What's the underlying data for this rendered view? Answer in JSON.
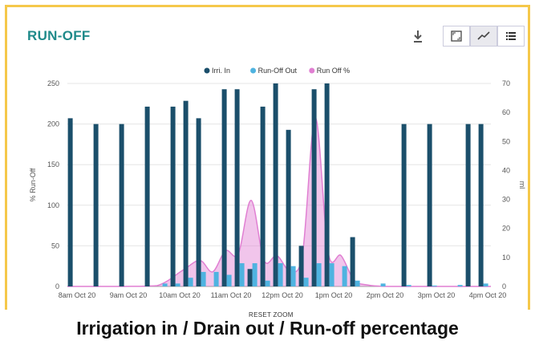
{
  "header": {
    "title": "RUN-OFF"
  },
  "toolbar": {
    "download_icon": "download-icon",
    "fullscreen_icon": "fullscreen-icon",
    "line_icon": "line-chart-icon",
    "list_icon": "list-icon"
  },
  "reset_zoom_label": "RESET ZOOM",
  "caption": "Irrigation in / Drain out / Run-off  percentage",
  "chart_data": {
    "type": "bar",
    "categories": [
      "8am Oct 20",
      "9am Oct 20",
      "10am Oct 20",
      "11am Oct 20",
      "12pm Oct 20",
      "1pm Oct 20",
      "2pm Oct 20",
      "3pm Oct 20",
      "4pm Oct 20"
    ],
    "x_range_hours": [
      7.75,
      16.0
    ],
    "ylabel_left": "% Run-Off",
    "ylabel_right": "ml",
    "ylim_left": [
      0,
      250
    ],
    "ylim_right": [
      0,
      70
    ],
    "yticks_left": [
      0,
      50,
      100,
      150,
      200,
      250
    ],
    "yticks_right": [
      0,
      10,
      20,
      30,
      40,
      50,
      60,
      70
    ],
    "legend_position": "top-center",
    "grid": true,
    "series": [
      {
        "name": "Irri. In",
        "type": "bar",
        "axis": "right",
        "color": "#1b4f6b",
        "points": [
          [
            7.83,
            58
          ],
          [
            8.33,
            56
          ],
          [
            8.83,
            56
          ],
          [
            9.33,
            62
          ],
          [
            9.83,
            62
          ],
          [
            10.08,
            64
          ],
          [
            10.33,
            58
          ],
          [
            10.83,
            68
          ],
          [
            11.08,
            68
          ],
          [
            11.33,
            6
          ],
          [
            11.58,
            62
          ],
          [
            11.83,
            70
          ],
          [
            12.08,
            54
          ],
          [
            12.33,
            14
          ],
          [
            12.58,
            68
          ],
          [
            12.83,
            70
          ],
          [
            13.33,
            17
          ],
          [
            14.33,
            56
          ],
          [
            14.83,
            56
          ],
          [
            15.58,
            56
          ],
          [
            15.83,
            56
          ]
        ]
      },
      {
        "name": "Run-Off Out",
        "type": "bar",
        "axis": "right",
        "color": "#4fb3e0",
        "points": [
          [
            9.58,
            1
          ],
          [
            9.83,
            1
          ],
          [
            10.08,
            3
          ],
          [
            10.33,
            5
          ],
          [
            10.58,
            5
          ],
          [
            10.83,
            4
          ],
          [
            11.08,
            8
          ],
          [
            11.33,
            8
          ],
          [
            11.58,
            2
          ],
          [
            11.83,
            8
          ],
          [
            12.08,
            7
          ],
          [
            12.33,
            3
          ],
          [
            12.58,
            8
          ],
          [
            12.83,
            8
          ],
          [
            13.08,
            7
          ],
          [
            13.33,
            2
          ],
          [
            13.83,
            1
          ],
          [
            14.33,
            0.5
          ],
          [
            14.83,
            0.3
          ],
          [
            15.33,
            0.5
          ],
          [
            15.83,
            1
          ]
        ]
      },
      {
        "name": "Run Off %",
        "type": "area",
        "axis": "left",
        "color": "#e07fd2",
        "points": [
          [
            7.75,
            0
          ],
          [
            8.83,
            0
          ],
          [
            9.5,
            1
          ],
          [
            10.0,
            20
          ],
          [
            10.33,
            32
          ],
          [
            10.58,
            18
          ],
          [
            10.83,
            44
          ],
          [
            11.08,
            40
          ],
          [
            11.33,
            106
          ],
          [
            11.58,
            32
          ],
          [
            11.83,
            38
          ],
          [
            12.08,
            20
          ],
          [
            12.33,
            40
          ],
          [
            12.58,
            208
          ],
          [
            12.83,
            42
          ],
          [
            13.08,
            38
          ],
          [
            13.33,
            8
          ],
          [
            13.58,
            2
          ],
          [
            14.0,
            0
          ],
          [
            15.0,
            0
          ],
          [
            16.0,
            0
          ]
        ]
      }
    ]
  }
}
